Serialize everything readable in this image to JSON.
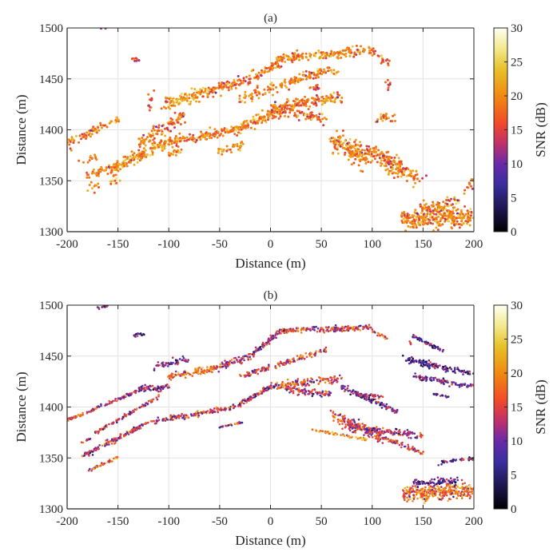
{
  "figure": {
    "panels": [
      "(a)",
      "(b)"
    ]
  },
  "colormap": {
    "name": "thermal",
    "stops": [
      {
        "v": 0,
        "color": "#000000"
      },
      {
        "v": 3,
        "color": "#1a1446"
      },
      {
        "v": 7,
        "color": "#3a2ea0"
      },
      {
        "v": 10,
        "color": "#6a2aa8"
      },
      {
        "v": 13,
        "color": "#c0306a"
      },
      {
        "v": 16,
        "color": "#f24a28"
      },
      {
        "v": 20,
        "color": "#f08a10"
      },
      {
        "v": 24,
        "color": "#e8c22a"
      },
      {
        "v": 27,
        "color": "#f2ea90"
      },
      {
        "v": 30,
        "color": "#fffff2"
      }
    ]
  },
  "chart_data": [
    {
      "type": "scatter",
      "title": "(a)",
      "xlabel": "Distance (m)",
      "ylabel": "Distance (m)",
      "xlim": [
        -200,
        200
      ],
      "ylim": [
        1300,
        1500
      ],
      "xticks": [
        -200,
        -150,
        -100,
        -50,
        0,
        50,
        100,
        150,
        200
      ],
      "yticks": [
        1300,
        1350,
        1400,
        1450,
        1500
      ],
      "grid": true,
      "colorbar": {
        "label": "SNR (dB)",
        "range": [
          0,
          30
        ],
        "ticks": [
          0,
          5,
          10,
          15,
          20,
          25,
          30
        ]
      },
      "color_variable": "SNR (dB)",
      "snr_typical_range": [
        13,
        26
      ],
      "segments": [
        {
          "x0": -200,
          "y0": 1387,
          "x1": -160,
          "y1": 1405,
          "n": 60,
          "w": 3,
          "snr": 19
        },
        {
          "x0": -158,
          "y0": 1406,
          "x1": -148,
          "y1": 1410,
          "n": 12,
          "w": 2,
          "snr": 20
        },
        {
          "x0": -188,
          "y0": 1368,
          "x1": -172,
          "y1": 1374,
          "n": 12,
          "w": 2,
          "snr": 18
        },
        {
          "x0": -180,
          "y0": 1355,
          "x1": -150,
          "y1": 1365,
          "n": 45,
          "w": 4,
          "snr": 19
        },
        {
          "x0": -177,
          "y0": 1341,
          "x1": -170,
          "y1": 1347,
          "n": 10,
          "w": 2,
          "snr": 19
        },
        {
          "x0": -158,
          "y0": 1348,
          "x1": -150,
          "y1": 1351,
          "n": 10,
          "w": 1,
          "snr": 23
        },
        {
          "x0": -158,
          "y0": 1360,
          "x1": -100,
          "y1": 1388,
          "n": 160,
          "w": 4,
          "snr": 20
        },
        {
          "x0": -100,
          "y0": 1388,
          "x1": -35,
          "y1": 1400,
          "n": 120,
          "w": 3,
          "snr": 19
        },
        {
          "x0": -35,
          "y0": 1400,
          "x1": 20,
          "y1": 1425,
          "n": 140,
          "w": 4,
          "snr": 20
        },
        {
          "x0": 20,
          "y0": 1425,
          "x1": 70,
          "y1": 1432,
          "n": 110,
          "w": 4,
          "snr": 19
        },
        {
          "x0": 0,
          "y0": 1420,
          "x1": 55,
          "y1": 1410,
          "n": 90,
          "w": 5,
          "snr": 18
        },
        {
          "x0": -100,
          "y0": 1375,
          "x1": -88,
          "y1": 1381,
          "n": 20,
          "w": 2,
          "snr": 19
        },
        {
          "x0": -50,
          "y0": 1378,
          "x1": -27,
          "y1": 1385,
          "n": 30,
          "w": 2,
          "snr": 20
        },
        {
          "x0": -130,
          "y0": 1385,
          "x1": -85,
          "y1": 1415,
          "n": 100,
          "w": 5,
          "snr": 18
        },
        {
          "x0": -105,
          "y0": 1425,
          "x1": -60,
          "y1": 1438,
          "n": 110,
          "w": 4,
          "snr": 21
        },
        {
          "x0": -60,
          "y0": 1438,
          "x1": -20,
          "y1": 1450,
          "n": 80,
          "w": 4,
          "snr": 18
        },
        {
          "x0": -20,
          "y0": 1450,
          "x1": 10,
          "y1": 1466,
          "n": 60,
          "w": 4,
          "snr": 19
        },
        {
          "x0": 5,
          "y0": 1470,
          "x1": 100,
          "y1": 1478,
          "n": 160,
          "w": 3,
          "snr": 20
        },
        {
          "x0": 100,
          "y0": 1476,
          "x1": 115,
          "y1": 1465,
          "n": 20,
          "w": 3,
          "snr": 18
        },
        {
          "x0": -30,
          "y0": 1430,
          "x1": 45,
          "y1": 1456,
          "n": 120,
          "w": 4,
          "snr": 19
        },
        {
          "x0": 45,
          "y0": 1456,
          "x1": 65,
          "y1": 1458,
          "n": 30,
          "w": 2,
          "snr": 20
        },
        {
          "x0": 60,
          "y0": 1390,
          "x1": 95,
          "y1": 1372,
          "n": 160,
          "w": 8,
          "snr": 19
        },
        {
          "x0": 95,
          "y0": 1380,
          "x1": 130,
          "y1": 1365,
          "n": 110,
          "w": 6,
          "snr": 18
        },
        {
          "x0": 110,
          "y0": 1365,
          "x1": 150,
          "y1": 1352,
          "n": 80,
          "w": 5,
          "snr": 19
        },
        {
          "x0": 130,
          "y0": 1312,
          "x1": 200,
          "y1": 1315,
          "n": 300,
          "w": 9,
          "snr": 20
        },
        {
          "x0": 148,
          "y0": 1322,
          "x1": 185,
          "y1": 1330,
          "n": 70,
          "w": 5,
          "snr": 19
        },
        {
          "x0": 192,
          "y0": 1342,
          "x1": 200,
          "y1": 1350,
          "n": 14,
          "w": 3,
          "snr": 18
        },
        {
          "x0": 105,
          "y0": 1412,
          "x1": 125,
          "y1": 1410,
          "n": 25,
          "w": 3,
          "snr": 19
        },
        {
          "x0": 115,
          "y0": 1448,
          "x1": 118,
          "y1": 1442,
          "n": 8,
          "w": 2,
          "snr": 16
        },
        {
          "x0": 40,
          "y0": 1443,
          "x1": 48,
          "y1": 1438,
          "n": 14,
          "w": 2,
          "snr": 16
        },
        {
          "x0": -135,
          "y0": 1468,
          "x1": -127,
          "y1": 1470,
          "n": 8,
          "w": 1,
          "snr": 18
        },
        {
          "x0": -120,
          "y0": 1420,
          "x1": -117,
          "y1": 1438,
          "n": 12,
          "w": 2,
          "snr": 16
        },
        {
          "x0": -168,
          "y0": 1498,
          "x1": -164,
          "y1": 1499,
          "n": 2,
          "w": 0,
          "snr": 16
        }
      ]
    },
    {
      "type": "scatter",
      "title": "(b)",
      "xlabel": "Distance (m)",
      "ylabel": "Distance (m)",
      "xlim": [
        -200,
        200
      ],
      "ylim": [
        1300,
        1500
      ],
      "xticks": [
        -200,
        -150,
        -100,
        -50,
        0,
        50,
        100,
        150,
        200
      ],
      "yticks": [
        1300,
        1350,
        1400,
        1450,
        1500
      ],
      "grid": true,
      "colorbar": {
        "label": "SNR (dB)",
        "range": [
          0,
          30
        ],
        "ticks": [
          0,
          5,
          10,
          15,
          20,
          25,
          30
        ]
      },
      "color_variable": "SNR (dB)",
      "snr_typical_range": [
        6,
        24
      ],
      "segments": [
        {
          "x0": -200,
          "y0": 1387,
          "x1": -125,
          "y1": 1418,
          "n": 120,
          "w": 1,
          "snr": 14
        },
        {
          "x0": -172,
          "y0": 1375,
          "x1": -110,
          "y1": 1410,
          "n": 90,
          "w": 1,
          "snr": 14
        },
        {
          "x0": -185,
          "y0": 1352,
          "x1": -120,
          "y1": 1385,
          "n": 140,
          "w": 2,
          "snr": 13
        },
        {
          "x0": -120,
          "y0": 1385,
          "x1": -35,
          "y1": 1400,
          "n": 140,
          "w": 2,
          "snr": 14
        },
        {
          "x0": -35,
          "y0": 1400,
          "x1": 0,
          "y1": 1420,
          "n": 90,
          "w": 2,
          "snr": 13
        },
        {
          "x0": 0,
          "y0": 1420,
          "x1": 70,
          "y1": 1428,
          "n": 130,
          "w": 3,
          "snr": 15
        },
        {
          "x0": 15,
          "y0": 1418,
          "x1": 60,
          "y1": 1412,
          "n": 90,
          "w": 3,
          "snr": 13
        },
        {
          "x0": -180,
          "y0": 1337,
          "x1": -150,
          "y1": 1351,
          "n": 40,
          "w": 1,
          "snr": 16
        },
        {
          "x0": -185,
          "y0": 1365,
          "x1": -178,
          "y1": 1369,
          "n": 10,
          "w": 0,
          "snr": 15
        },
        {
          "x0": -50,
          "y0": 1380,
          "x1": -28,
          "y1": 1385,
          "n": 25,
          "w": 0,
          "snr": 12
        },
        {
          "x0": -130,
          "y0": 1418,
          "x1": -100,
          "y1": 1420,
          "n": 70,
          "w": 3,
          "snr": 11
        },
        {
          "x0": -100,
          "y0": 1430,
          "x1": -55,
          "y1": 1438,
          "n": 110,
          "w": 3,
          "snr": 18
        },
        {
          "x0": -55,
          "y0": 1438,
          "x1": -20,
          "y1": 1450,
          "n": 80,
          "w": 3,
          "snr": 13
        },
        {
          "x0": -20,
          "y0": 1450,
          "x1": 10,
          "y1": 1475,
          "n": 80,
          "w": 2,
          "snr": 12
        },
        {
          "x0": 10,
          "y0": 1475,
          "x1": 100,
          "y1": 1478,
          "n": 180,
          "w": 2,
          "snr": 15
        },
        {
          "x0": 100,
          "y0": 1475,
          "x1": 115,
          "y1": 1467,
          "n": 20,
          "w": 1,
          "snr": 16
        },
        {
          "x0": -30,
          "y0": 1430,
          "x1": 55,
          "y1": 1456,
          "n": 130,
          "w": 2,
          "snr": 15
        },
        {
          "x0": -115,
          "y0": 1440,
          "x1": -80,
          "y1": 1447,
          "n": 50,
          "w": 3,
          "snr": 9
        },
        {
          "x0": 60,
          "y0": 1393,
          "x1": 110,
          "y1": 1370,
          "n": 160,
          "w": 5,
          "snr": 15
        },
        {
          "x0": 75,
          "y0": 1380,
          "x1": 150,
          "y1": 1372,
          "n": 120,
          "w": 3,
          "snr": 13
        },
        {
          "x0": 40,
          "y0": 1378,
          "x1": 95,
          "y1": 1368,
          "n": 60,
          "w": 1,
          "snr": 21
        },
        {
          "x0": 110,
          "y0": 1370,
          "x1": 150,
          "y1": 1355,
          "n": 60,
          "w": 2,
          "snr": 14
        },
        {
          "x0": 130,
          "y0": 1315,
          "x1": 200,
          "y1": 1318,
          "n": 320,
          "w": 7,
          "snr": 18
        },
        {
          "x0": 140,
          "y0": 1325,
          "x1": 185,
          "y1": 1328,
          "n": 80,
          "w": 3,
          "snr": 8
        },
        {
          "x0": 165,
          "y0": 1345,
          "x1": 200,
          "y1": 1350,
          "n": 40,
          "w": 1,
          "snr": 8
        },
        {
          "x0": 70,
          "y0": 1420,
          "x1": 125,
          "y1": 1395,
          "n": 110,
          "w": 2,
          "snr": 10
        },
        {
          "x0": 85,
          "y0": 1412,
          "x1": 110,
          "y1": 1410,
          "n": 40,
          "w": 1,
          "snr": 12
        },
        {
          "x0": 140,
          "y0": 1470,
          "x1": 170,
          "y1": 1455,
          "n": 50,
          "w": 1,
          "snr": 8
        },
        {
          "x0": 130,
          "y0": 1448,
          "x1": 200,
          "y1": 1432,
          "n": 130,
          "w": 3,
          "snr": 8
        },
        {
          "x0": 140,
          "y0": 1430,
          "x1": 200,
          "y1": 1420,
          "n": 90,
          "w": 2,
          "snr": 9
        },
        {
          "x0": 160,
          "y0": 1413,
          "x1": 175,
          "y1": 1410,
          "n": 20,
          "w": 0,
          "snr": 8
        },
        {
          "x0": -135,
          "y0": 1470,
          "x1": -125,
          "y1": 1472,
          "n": 15,
          "w": 1,
          "snr": 8
        },
        {
          "x0": -170,
          "y0": 1497,
          "x1": -160,
          "y1": 1499,
          "n": 15,
          "w": 1,
          "snr": 8
        },
        {
          "x0": 135,
          "y0": 1465,
          "x1": 138,
          "y1": 1462,
          "n": 4,
          "w": 0,
          "snr": 16
        }
      ]
    }
  ]
}
